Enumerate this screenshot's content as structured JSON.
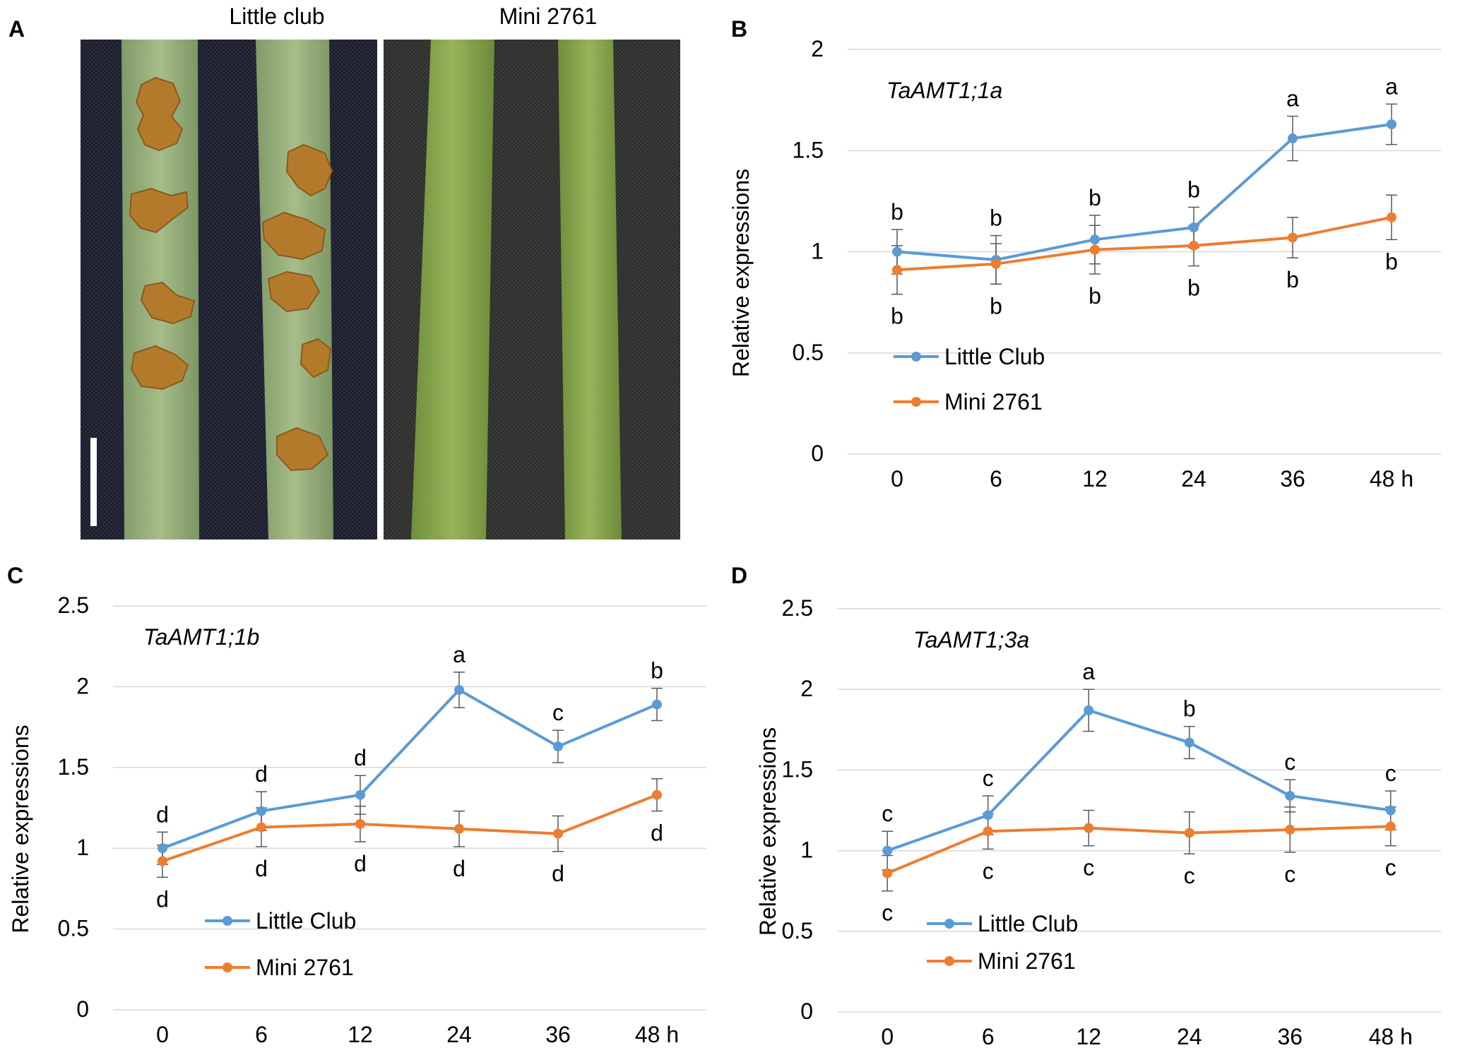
{
  "panel_a": {
    "label": "A",
    "left_title": "Little club",
    "right_title": "Mini 2761"
  },
  "colors": {
    "little_club": "#5b9bd5",
    "mini_2761": "#ed7d31",
    "grid": "#d9d9d9",
    "text": "#000000"
  },
  "chart_data": [
    {
      "panel": "B",
      "type": "line",
      "title": "TaAMT1;1a",
      "xlabel": "",
      "ylabel": "Relative expressions",
      "categories": [
        "0",
        "6",
        "12",
        "24",
        "36",
        "48 h"
      ],
      "ylim": [
        0,
        2
      ],
      "yticks": [
        "0",
        "0.5",
        "1",
        "1.5",
        "2"
      ],
      "legend": "inside-left",
      "series": [
        {
          "name": "Little Club",
          "values": [
            1.0,
            0.96,
            1.06,
            1.12,
            1.56,
            1.63
          ],
          "errors": [
            0.11,
            0.12,
            0.12,
            0.1,
            0.11,
            0.1
          ],
          "letters": [
            "b",
            "b",
            "b",
            "b",
            "a",
            "a"
          ]
        },
        {
          "name": "Mini 2761",
          "values": [
            0.91,
            0.94,
            1.01,
            1.03,
            1.07,
            1.17
          ],
          "errors": [
            0.12,
            0.1,
            0.12,
            0.1,
            0.1,
            0.11
          ],
          "letters": [
            "b",
            "b",
            "b",
            "b",
            "b",
            "b"
          ]
        }
      ]
    },
    {
      "panel": "C",
      "type": "line",
      "title": "TaAMT1;1b",
      "xlabel": "",
      "ylabel": "Relative expressions",
      "categories": [
        "0",
        "6",
        "12",
        "24",
        "36",
        "48 h"
      ],
      "ylim": [
        0,
        2.5
      ],
      "yticks": [
        "0",
        "0.5",
        "1",
        "1.5",
        "2",
        "2.5"
      ],
      "legend": "inside-left",
      "series": [
        {
          "name": "Little Club",
          "values": [
            1.0,
            1.23,
            1.33,
            1.98,
            1.63,
            1.89
          ],
          "errors": [
            0.1,
            0.12,
            0.12,
            0.11,
            0.1,
            0.1
          ],
          "letters": [
            "d",
            "d",
            "d",
            "a",
            "c",
            "b"
          ]
        },
        {
          "name": "Mini 2761",
          "values": [
            0.92,
            1.13,
            1.15,
            1.12,
            1.09,
            1.33
          ],
          "errors": [
            0.1,
            0.12,
            0.11,
            0.11,
            0.11,
            0.1
          ],
          "letters": [
            "d",
            "d",
            "d",
            "d",
            "d",
            "d"
          ]
        }
      ]
    },
    {
      "panel": "D",
      "type": "line",
      "title": "TaAMT1;3a",
      "xlabel": "",
      "ylabel": "Relative expressions",
      "categories": [
        "0",
        "6",
        "12",
        "24",
        "36",
        "48 h"
      ],
      "ylim": [
        0,
        2.5
      ],
      "yticks": [
        "0",
        "0.5",
        "1",
        "1.5",
        "2",
        "2.5"
      ],
      "legend": "inside-left",
      "series": [
        {
          "name": "Little Club",
          "values": [
            1.0,
            1.22,
            1.87,
            1.67,
            1.34,
            1.25
          ],
          "errors": [
            0.12,
            0.12,
            0.13,
            0.1,
            0.1,
            0.12
          ],
          "letters": [
            "c",
            "c",
            "a",
            "b",
            "c",
            "c"
          ]
        },
        {
          "name": "Mini 2761",
          "values": [
            0.86,
            1.12,
            1.14,
            1.11,
            1.13,
            1.15
          ],
          "errors": [
            0.11,
            0.11,
            0.11,
            0.13,
            0.14,
            0.12
          ],
          "letters": [
            "c",
            "c",
            "c",
            "c",
            "c",
            "c"
          ]
        }
      ]
    }
  ]
}
